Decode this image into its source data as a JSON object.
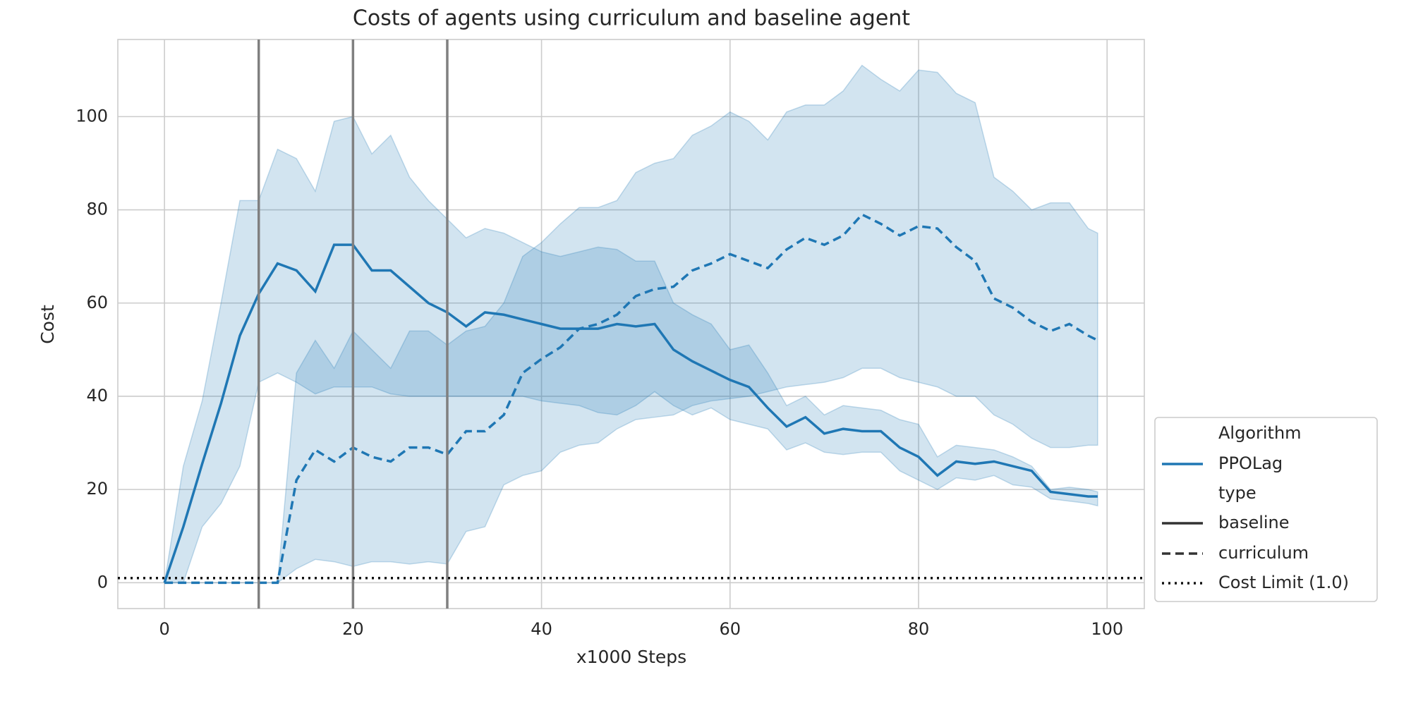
{
  "chart_data": {
    "type": "line",
    "title": "Costs of agents using curriculum and baseline agent",
    "xlabel": "x1000 Steps",
    "ylabel": "Cost",
    "x": [
      0,
      2,
      4,
      6,
      8,
      10,
      12,
      14,
      16,
      18,
      20,
      22,
      24,
      26,
      28,
      30,
      32,
      34,
      36,
      38,
      40,
      42,
      44,
      46,
      48,
      50,
      52,
      54,
      56,
      58,
      60,
      62,
      64,
      66,
      68,
      70,
      72,
      74,
      76,
      78,
      80,
      82,
      84,
      86,
      88,
      90,
      92,
      94,
      96,
      98,
      99
    ],
    "series": [
      {
        "name": "baseline",
        "color": "#1f77b4",
        "dash": "solid",
        "values": [
          0,
          12,
          25.5,
          38.5,
          53,
          62,
          68.5,
          67,
          62.5,
          72.5,
          72.5,
          67,
          67,
          63.5,
          60,
          58,
          55,
          58,
          57.5,
          56.5,
          55.5,
          54.5,
          54.5,
          54.5,
          55.5,
          55,
          55.5,
          50,
          47.5,
          45.5,
          43.5,
          42,
          37.5,
          33.5,
          35.5,
          32,
          33,
          32.5,
          32.5,
          29,
          27,
          23,
          26,
          25.5,
          26,
          25,
          24,
          19.5,
          19,
          18.5,
          18.5
        ],
        "lower": [
          0,
          0,
          12,
          17,
          25,
          43,
          45,
          43,
          40.5,
          42,
          42,
          42,
          40.5,
          40,
          40,
          40,
          40,
          40,
          40,
          40,
          39,
          38.5,
          38,
          36.5,
          36,
          38,
          41,
          38,
          36,
          37.5,
          35,
          34,
          33,
          28.5,
          30,
          28,
          27.5,
          28,
          28,
          24,
          22,
          20,
          22.5,
          22,
          23,
          21,
          20.5,
          18,
          17.5,
          17,
          16.5
        ],
        "upper": [
          0,
          25,
          39,
          60,
          82,
          82,
          93,
          91,
          84,
          99,
          100,
          92,
          96,
          87,
          82,
          78,
          74,
          76,
          75,
          73,
          71,
          70,
          71,
          72,
          71.5,
          69,
          69,
          60,
          57.5,
          55.5,
          50,
          51,
          45,
          38,
          40,
          36,
          38,
          37.5,
          37,
          35,
          34,
          27,
          29.5,
          29,
          28.5,
          27,
          25,
          20,
          20.5,
          20,
          19.5
        ]
      },
      {
        "name": "curriculum",
        "color": "#1f77b4",
        "dash": "dashed",
        "values": [
          0,
          0,
          0,
          0,
          0,
          0,
          0,
          22,
          28.5,
          26,
          29,
          27,
          26,
          29,
          29,
          27.5,
          32.5,
          32.5,
          36,
          45,
          48,
          50.5,
          54.5,
          55.5,
          57.5,
          61.5,
          63,
          63.5,
          67,
          68.5,
          70.5,
          69,
          67.5,
          71.5,
          74,
          72.5,
          74.5,
          79,
          77,
          74.5,
          76.5,
          76,
          72,
          69,
          61,
          59,
          56,
          54,
          55.5,
          53,
          52
        ],
        "lower": [
          0,
          0,
          0,
          0,
          0,
          0,
          0,
          3,
          5,
          4.5,
          3.5,
          4.5,
          4.5,
          4,
          4.5,
          4,
          11,
          12,
          21,
          23,
          24,
          28,
          29.5,
          30,
          33,
          35,
          35.5,
          36,
          38,
          39,
          39.5,
          40,
          41,
          42,
          42.5,
          43,
          44,
          46,
          46,
          44,
          43,
          42,
          40,
          40,
          36,
          34,
          31,
          29,
          29,
          29.5,
          29.5
        ],
        "upper": [
          0,
          0,
          0,
          0,
          0,
          0,
          0,
          45,
          52,
          46,
          54,
          50,
          46,
          54,
          54,
          51,
          54,
          55,
          60,
          70,
          73,
          77,
          80.5,
          80.5,
          82,
          88,
          90,
          91,
          96,
          98,
          101,
          99,
          95,
          101,
          102.5,
          102.5,
          105.5,
          111,
          108,
          105.5,
          110,
          109.5,
          105,
          103,
          87,
          84,
          80,
          81.5,
          81.5,
          76,
          75
        ]
      }
    ],
    "legend_hue_title": "Algorithm",
    "legend_hue": "PPOLag",
    "legend_style_title": "type",
    "hline": {
      "value": 1.0,
      "label": "Cost Limit (1.0)",
      "color": "#111111"
    },
    "vlines": [
      10,
      20,
      30
    ],
    "vline_color": "#808080",
    "xlim": [
      -4.95,
      103.95
    ],
    "ylim": [
      -5.55,
      116.55
    ],
    "xticks": [
      0,
      20,
      40,
      60,
      80,
      100
    ],
    "yticks": [
      0,
      20,
      40,
      60,
      80,
      100
    ],
    "grid": true,
    "legend": "outside lower right"
  }
}
